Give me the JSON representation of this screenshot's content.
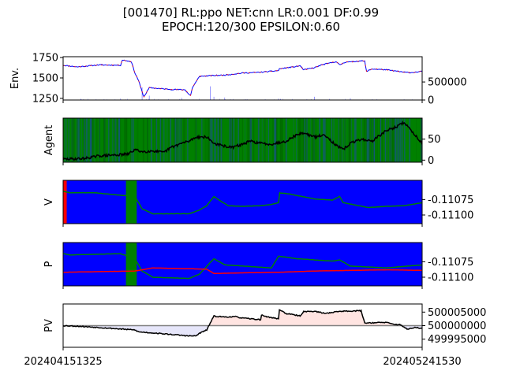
{
  "title_line1": "[001470] RL:ppo NET:cnn LR:0.001 DF:0.99",
  "title_line2": "EPOCH:120/300 EPSILON:0.60",
  "x_tick_labels": [
    "202404151325",
    "202405241530"
  ],
  "colors": {
    "blue": "#0000ff",
    "red": "#ff0000",
    "green": "#008000",
    "dark_green": "#006400",
    "black": "#000000",
    "gray": "#808080",
    "pv_neg_fill": "#e6e6fa",
    "pv_pos_fill": "#ffe4e1"
  },
  "chart_data": [
    {
      "type": "line",
      "panel": "env",
      "ylabel": "Env.",
      "ylim": [
        1230,
        1760
      ],
      "yticks": [
        "1250",
        "1500",
        "1750"
      ],
      "y2lim": [
        0,
        1200000
      ],
      "y2ticks": [
        "0",
        "500000"
      ],
      "price_knots": [
        [
          0,
          1655
        ],
        [
          0.04,
          1635
        ],
        [
          0.1,
          1660
        ],
        [
          0.16,
          1655
        ],
        [
          0.165,
          1720
        ],
        [
          0.19,
          1700
        ],
        [
          0.2,
          1560
        ],
        [
          0.21,
          1470
        ],
        [
          0.22,
          1330
        ],
        [
          0.225,
          1270
        ],
        [
          0.24,
          1380
        ],
        [
          0.3,
          1360
        ],
        [
          0.34,
          1355
        ],
        [
          0.35,
          1300
        ],
        [
          0.355,
          1285
        ],
        [
          0.36,
          1380
        ],
        [
          0.38,
          1520
        ],
        [
          0.42,
          1530
        ],
        [
          0.45,
          1535
        ],
        [
          0.5,
          1560
        ],
        [
          0.55,
          1570
        ],
        [
          0.6,
          1590
        ],
        [
          0.6,
          1610
        ],
        [
          0.65,
          1640
        ],
        [
          0.66,
          1650
        ],
        [
          0.67,
          1600
        ],
        [
          0.7,
          1625
        ],
        [
          0.72,
          1660
        ],
        [
          0.76,
          1700
        ],
        [
          0.77,
          1660
        ],
        [
          0.79,
          1700
        ],
        [
          0.8,
          1695
        ],
        [
          0.83,
          1710
        ],
        [
          0.84,
          1705
        ],
        [
          0.845,
          1580
        ],
        [
          0.86,
          1610
        ],
        [
          0.9,
          1600
        ],
        [
          0.95,
          1570
        ],
        [
          0.97,
          1565
        ],
        [
          1,
          1580
        ]
      ],
      "volume_spikes": [
        [
          0.05,
          30000
        ],
        [
          0.16,
          40000
        ],
        [
          0.22,
          350000
        ],
        [
          0.24,
          120000
        ],
        [
          0.33,
          60000
        ],
        [
          0.41,
          380000
        ],
        [
          0.42,
          90000
        ],
        [
          0.45,
          70000
        ],
        [
          0.6,
          40000
        ],
        [
          0.7,
          90000
        ],
        [
          0.8,
          50000
        ]
      ]
    },
    {
      "type": "line",
      "panel": "agent",
      "ylabel": "Agent",
      "ylim": [
        -5,
        100
      ],
      "yticks": [
        "0",
        "50"
      ],
      "line_knots": [
        [
          0,
          2
        ],
        [
          0.06,
          4
        ],
        [
          0.1,
          10
        ],
        [
          0.14,
          12
        ],
        [
          0.18,
          14
        ],
        [
          0.2,
          25
        ],
        [
          0.22,
          20
        ],
        [
          0.25,
          22
        ],
        [
          0.28,
          18
        ],
        [
          0.3,
          30
        ],
        [
          0.33,
          40
        ],
        [
          0.35,
          45
        ],
        [
          0.37,
          55
        ],
        [
          0.4,
          55
        ],
        [
          0.42,
          40
        ],
        [
          0.44,
          35
        ],
        [
          0.47,
          30
        ],
        [
          0.5,
          38
        ],
        [
          0.52,
          45
        ],
        [
          0.55,
          40
        ],
        [
          0.58,
          38
        ],
        [
          0.62,
          45
        ],
        [
          0.65,
          60
        ],
        [
          0.67,
          65
        ],
        [
          0.7,
          55
        ],
        [
          0.73,
          60
        ],
        [
          0.76,
          35
        ],
        [
          0.78,
          25
        ],
        [
          0.8,
          40
        ],
        [
          0.83,
          50
        ],
        [
          0.86,
          45
        ],
        [
          0.9,
          70
        ],
        [
          0.93,
          80
        ],
        [
          0.95,
          90
        ],
        [
          0.97,
          70
        ],
        [
          1,
          40
        ]
      ],
      "background_pattern": "green with blue stripes"
    },
    {
      "type": "line",
      "panel": "V",
      "ylabel": "V",
      "ylim": [
        -0.11114,
        -0.11044
      ],
      "yticks": [
        "-0.11075",
        "-0.11100"
      ],
      "line_knots": [
        [
          0,
          -0.11062
        ],
        [
          0.02,
          -0.11064
        ],
        [
          0.09,
          -0.11064
        ],
        [
          0.12,
          -0.11066
        ],
        [
          0.2,
          -0.1107
        ],
        [
          0.22,
          -0.1109
        ],
        [
          0.25,
          -0.11098
        ],
        [
          0.35,
          -0.11098
        ],
        [
          0.38,
          -0.11092
        ],
        [
          0.4,
          -0.11085
        ],
        [
          0.42,
          -0.1107
        ],
        [
          0.44,
          -0.11078
        ],
        [
          0.46,
          -0.11085
        ],
        [
          0.5,
          -0.11086
        ],
        [
          0.55,
          -0.11085
        ],
        [
          0.58,
          -0.11083
        ],
        [
          0.6,
          -0.1108
        ],
        [
          0.6,
          -0.11064
        ],
        [
          0.63,
          -0.11066
        ],
        [
          0.7,
          -0.11074
        ],
        [
          0.75,
          -0.11076
        ],
        [
          0.77,
          -0.1107
        ],
        [
          0.78,
          -0.1108
        ],
        [
          0.85,
          -0.11088
        ],
        [
          0.9,
          -0.11086
        ],
        [
          0.95,
          -0.11085
        ],
        [
          1,
          -0.1108
        ]
      ],
      "shaded_bands": [
        {
          "start": 0,
          "end": 0.01,
          "color": "red"
        },
        {
          "start": 0.175,
          "end": 0.205,
          "color": "green"
        }
      ]
    },
    {
      "type": "line",
      "panel": "P",
      "ylabel": "P",
      "ylim": [
        -0.11114,
        -0.11044
      ],
      "yticks": [
        "-0.11075",
        "-0.11100"
      ],
      "green_knots": [
        [
          0,
          -0.11062
        ],
        [
          0.02,
          -0.11064
        ],
        [
          0.16,
          -0.11062
        ],
        [
          0.2,
          -0.1107
        ],
        [
          0.22,
          -0.1109
        ],
        [
          0.25,
          -0.111
        ],
        [
          0.35,
          -0.11102
        ],
        [
          0.38,
          -0.11095
        ],
        [
          0.42,
          -0.1107
        ],
        [
          0.45,
          -0.1108
        ],
        [
          0.58,
          -0.11085
        ],
        [
          0.6,
          -0.11066
        ],
        [
          0.65,
          -0.1107
        ],
        [
          0.75,
          -0.11074
        ],
        [
          0.77,
          -0.11072
        ],
        [
          0.8,
          -0.11082
        ],
        [
          0.9,
          -0.11085
        ],
        [
          1,
          -0.1108
        ]
      ],
      "red_knots": [
        [
          0,
          -0.11092
        ],
        [
          0.1,
          -0.11091
        ],
        [
          0.2,
          -0.1109
        ],
        [
          0.25,
          -0.11085
        ],
        [
          0.4,
          -0.11087
        ],
        [
          0.42,
          -0.11094
        ],
        [
          0.5,
          -0.11093
        ],
        [
          0.6,
          -0.11092
        ],
        [
          0.7,
          -0.1109
        ],
        [
          0.8,
          -0.11089
        ],
        [
          0.9,
          -0.11088
        ],
        [
          1,
          -0.11089
        ]
      ],
      "shaded_bands": [
        {
          "start": 0.175,
          "end": 0.205,
          "color": "green"
        }
      ]
    },
    {
      "type": "area",
      "panel": "PV",
      "ylabel": "PV",
      "ylim": [
        499992000,
        500008000
      ],
      "yticks": [
        "500005000",
        "500000000",
        "499995000"
      ],
      "baseline": 500000000,
      "line_knots": [
        [
          0,
          500000000
        ],
        [
          0.04,
          499999800
        ],
        [
          0.1,
          499999300
        ],
        [
          0.2,
          499998400
        ],
        [
          0.21,
          499997700
        ],
        [
          0.26,
          499997200
        ],
        [
          0.35,
          499996200
        ],
        [
          0.37,
          499996200
        ],
        [
          0.38,
          499997200
        ],
        [
          0.4,
          499998400
        ],
        [
          0.41,
          500001000
        ],
        [
          0.42,
          500003500
        ],
        [
          0.45,
          500003200
        ],
        [
          0.48,
          500003300
        ],
        [
          0.5,
          500002800
        ],
        [
          0.55,
          500002200
        ],
        [
          0.55,
          500004000
        ],
        [
          0.57,
          500003200
        ],
        [
          0.6,
          500002500
        ],
        [
          0.6,
          500006200
        ],
        [
          0.62,
          500004500
        ],
        [
          0.66,
          500003600
        ],
        [
          0.67,
          500005200
        ],
        [
          0.7,
          500005300
        ],
        [
          0.73,
          500004500
        ],
        [
          0.77,
          500005300
        ],
        [
          0.8,
          500005400
        ],
        [
          0.83,
          500005500
        ],
        [
          0.84,
          500001000
        ],
        [
          0.87,
          500001100
        ],
        [
          0.9,
          500001200
        ],
        [
          0.92,
          500000500
        ],
        [
          0.94,
          500000300
        ],
        [
          0.96,
          499998600
        ],
        [
          0.98,
          499999300
        ],
        [
          1,
          499999000
        ]
      ]
    }
  ]
}
